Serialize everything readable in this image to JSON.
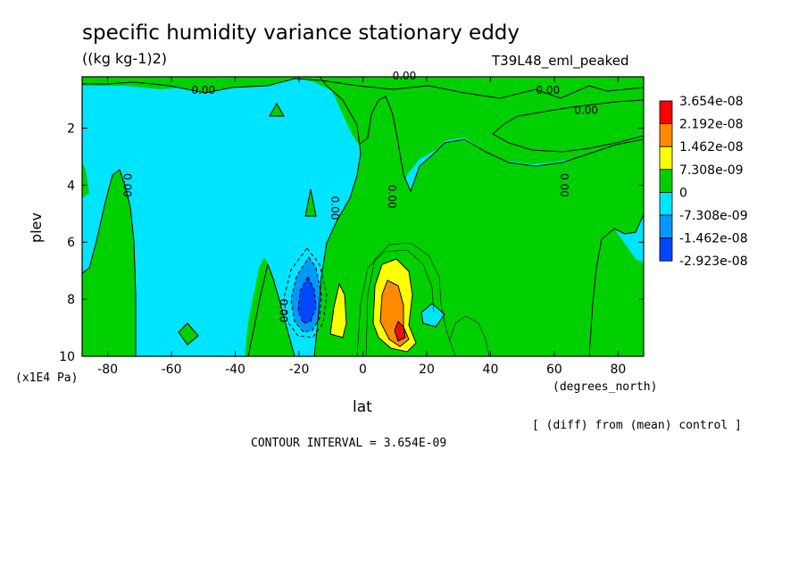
{
  "header": {
    "title": "specific humidity variance stationary eddy",
    "units": "((kg kg-1)2)",
    "case_name": "T39L48_eml_peaked"
  },
  "footer": {
    "diff_note": "[ (diff) from (mean) control ]",
    "contour_interval": "CONTOUR INTERVAL = 3.654E-09"
  },
  "chart_data": {
    "type": "heatmap",
    "title": "specific humidity variance stationary eddy",
    "subtitle": "((kg kg-1)2)",
    "xlabel": "lat",
    "x_units": "(degrees_north)",
    "ylabel": "plev",
    "y_units": "(x1E4 Pa)",
    "xlim": [
      -88,
      88
    ],
    "ylim": [
      10,
      0.2
    ],
    "x_ticks": [
      -80,
      -60,
      -40,
      -20,
      0,
      20,
      40,
      60,
      80
    ],
    "x_tick_labels": [
      "-80",
      "-60",
      "-40",
      "-20",
      "0",
      "20",
      "40",
      "60",
      "80"
    ],
    "y_ticks": [
      2,
      4,
      6,
      8,
      10
    ],
    "y_tick_labels": [
      "2",
      "4",
      "6",
      "8",
      "10"
    ],
    "legend": {
      "placement": "right",
      "labels": [
        "3.654e-08",
        "2.192e-08",
        "1.462e-08",
        "7.308e-09",
        "0",
        "-7.308e-09",
        "-1.462e-08",
        "-2.923e-08"
      ],
      "colors": [
        "#ff0000",
        "#ff8c00",
        "#ffff00",
        "#00d000",
        "#00e5ff",
        "#0099ff",
        "#0047ff"
      ]
    },
    "contour_labels": [
      {
        "text": "0.00",
        "lat": -50,
        "plev": 0.8
      },
      {
        "text": "0.00",
        "lat": 13,
        "plev": 0.3
      },
      {
        "text": "0.00",
        "lat": 58,
        "plev": 0.8
      },
      {
        "text": "0.00",
        "lat": 70,
        "plev": 1.5
      },
      {
        "text": "0.00",
        "lat": -75,
        "plev": 4.0
      },
      {
        "text": "0.00",
        "lat": -10,
        "plev": 4.8
      },
      {
        "text": "0.00",
        "lat": 8,
        "plev": 4.4
      },
      {
        "text": "0.00",
        "lat": 62,
        "plev": 4.0
      },
      {
        "text": "0.00",
        "lat": -26,
        "plev": 8.4
      }
    ],
    "contour_interval": 3.654e-09
  }
}
